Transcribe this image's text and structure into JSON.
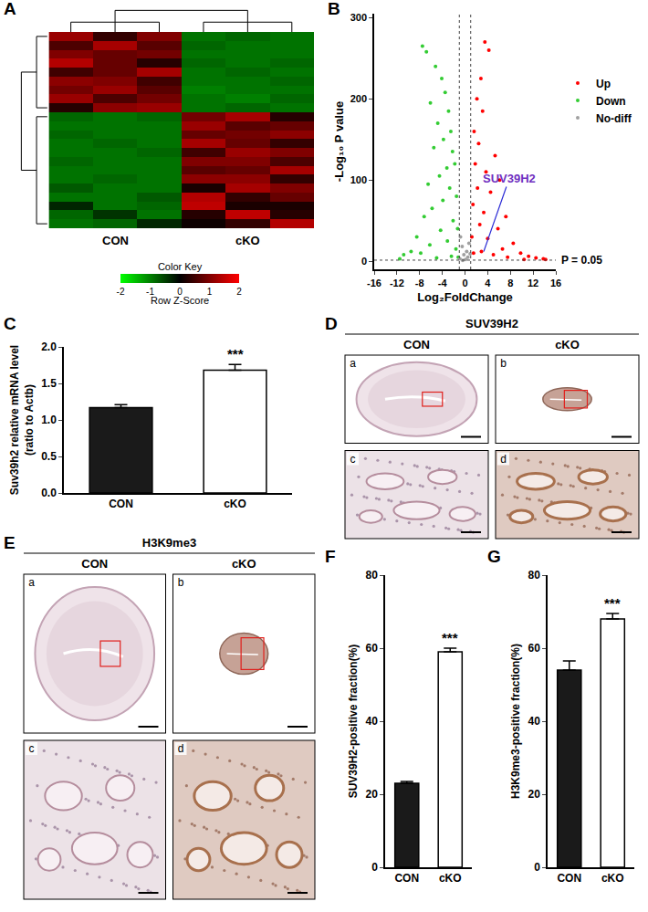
{
  "chart_data": [
    {
      "panel": "A",
      "type": "heatmap",
      "x": [
        "CON",
        "CON",
        "CON",
        "cKO",
        "cKO",
        "cKO"
      ],
      "z": [
        [
          1.2,
          0.4,
          1.0,
          -0.9,
          -0.8,
          -0.9
        ],
        [
          0.6,
          1.3,
          0.7,
          -0.8,
          -0.9,
          -0.9
        ],
        [
          1.0,
          0.8,
          0.9,
          -0.9,
          -0.9,
          -0.9
        ],
        [
          1.4,
          0.8,
          0.3,
          -0.8,
          -0.9,
          -0.8
        ],
        [
          0.5,
          0.8,
          1.3,
          -0.9,
          -0.8,
          -0.9
        ],
        [
          1.1,
          1.0,
          0.5,
          -0.9,
          -0.9,
          -0.8
        ],
        [
          0.9,
          1.2,
          0.7,
          -1.0,
          -0.9,
          -0.9
        ],
        [
          1.2,
          0.6,
          0.9,
          -0.9,
          -1.0,
          -0.8
        ],
        [
          0.3,
          1.1,
          1.2,
          -0.9,
          -0.8,
          -0.9
        ],
        [
          -0.8,
          -0.9,
          -0.8,
          0.9,
          1.3,
          0.3
        ],
        [
          -0.9,
          -0.9,
          -0.9,
          1.2,
          0.7,
          0.8
        ],
        [
          -0.8,
          -0.9,
          -0.9,
          0.8,
          0.9,
          1.1
        ],
        [
          -0.9,
          -0.8,
          -0.9,
          1.3,
          0.8,
          0.4
        ],
        [
          -0.9,
          -0.9,
          -0.8,
          0.5,
          1.2,
          1.0
        ],
        [
          -0.8,
          -0.9,
          -0.9,
          1.0,
          1.0,
          0.6
        ],
        [
          -0.9,
          -0.9,
          -0.9,
          0.7,
          0.8,
          1.3
        ],
        [
          -0.9,
          -0.8,
          -0.9,
          1.1,
          1.1,
          0.4
        ],
        [
          -0.7,
          -0.9,
          -0.9,
          0.2,
          1.3,
          1.0
        ],
        [
          -0.9,
          -0.9,
          -0.7,
          1.4,
          0.4,
          0.8
        ],
        [
          -0.3,
          -0.9,
          -0.8,
          1.5,
          0.2,
          0.2
        ],
        [
          -0.8,
          -0.4,
          -0.9,
          0.3,
          1.5,
          0.3
        ],
        [
          -0.9,
          -0.8,
          -0.3,
          0.1,
          0.4,
          1.4
        ]
      ],
      "colors": [
        "#00ff00",
        "#000000",
        "#ff0000"
      ],
      "colorbar": {
        "range": [
          -2,
          2
        ],
        "ticks": [
          -2,
          -1,
          0,
          1,
          2
        ],
        "title": "Color Key",
        "label": "Row Z-Score"
      },
      "tick_labels": false
    },
    {
      "panel": "B",
      "type": "scatter",
      "xlabel": "Log₂FoldChange",
      "ylabel": "-Log₁₀ P value",
      "xlim": [
        -16,
        16
      ],
      "xticks": [
        -16,
        -12,
        -8,
        -4,
        0,
        4,
        8,
        12,
        16
      ],
      "ylim": [
        -10,
        305
      ],
      "yticks": [
        0,
        100,
        200,
        300
      ],
      "legend": "right",
      "series": [
        {
          "name": "Up",
          "color": "#ff0000",
          "x": [
            3.5,
            4.2,
            2.8,
            2.1,
            3.1,
            1.6,
            2.4,
            5.3,
            1.8,
            3.7,
            6.1,
            2.2,
            4.5,
            1.4,
            3.3,
            7.2,
            2.6,
            5.8,
            1.2,
            4.0,
            8.5,
            6.6,
            2.9,
            9.8,
            11.2,
            12.5,
            13.8,
            7.5,
            10.4,
            5.0,
            14.2,
            1.5
          ],
          "y": [
            270,
            260,
            225,
            200,
            185,
            160,
            145,
            130,
            120,
            110,
            100,
            90,
            85,
            70,
            60,
            55,
            45,
            40,
            30,
            28,
            22,
            15,
            12,
            10,
            6,
            4,
            3,
            5,
            2,
            8,
            2,
            10
          ]
        },
        {
          "name": "Down",
          "color": "#33cc33",
          "x": [
            -7.5,
            -6.8,
            -5.2,
            -4.1,
            -3.5,
            -6.1,
            -2.9,
            -4.8,
            -2.5,
            -3.8,
            -5.5,
            -2.2,
            -1.8,
            -3.2,
            -4.5,
            -6.5,
            -2.7,
            -1.5,
            -3.9,
            -5.8,
            -7.2,
            -2.1,
            -1.3,
            -4.3,
            -8.5,
            -3.1,
            -6.2,
            -9.5,
            -1.6,
            -10.8,
            -2.4,
            -5.0,
            -11.5,
            -7.8,
            -1.2
          ],
          "y": [
            265,
            258,
            240,
            225,
            208,
            195,
            185,
            170,
            160,
            150,
            140,
            135,
            120,
            115,
            105,
            95,
            90,
            80,
            75,
            65,
            55,
            50,
            40,
            38,
            30,
            25,
            20,
            12,
            15,
            8,
            6,
            4,
            3,
            10,
            5
          ]
        },
        {
          "name": "No-diff",
          "color": "#a0a0a0",
          "x": [
            -0.8,
            -0.5,
            0.3,
            0.7,
            -0.2,
            0.5,
            -0.9,
            0.1,
            0.9,
            -0.4
          ],
          "y": [
            30,
            18,
            12,
            22,
            8,
            5,
            3,
            2,
            9,
            1
          ]
        }
      ],
      "highlight": {
        "label": "SUV39H2",
        "x": 3.3,
        "y": 12
      },
      "reference_lines": {
        "x": [
          -1,
          1
        ],
        "y": [
          1.3
        ],
        "label": "P = 0.05"
      }
    },
    {
      "panel": "C",
      "type": "bar",
      "ylabel": "Suv39h2 relative mRNA level (ratio to Actb)",
      "categories": [
        "CON",
        "cKO"
      ],
      "values": [
        1.17,
        1.68
      ],
      "errors": [
        0.04,
        0.08
      ],
      "colors": [
        "#1a1a1a",
        "#ffffff"
      ],
      "ylim": [
        0,
        2
      ],
      "yticks": [
        {
          "value": 0,
          "label": "0.0"
        },
        {
          "value": 0.5,
          "label": "0.5"
        },
        {
          "value": 1,
          "label": "1.0"
        },
        {
          "value": 1.5,
          "label": "1.5"
        },
        {
          "value": 2,
          "label": "2.0"
        }
      ],
      "annotations": [
        {
          "category": "cKO",
          "text": "***"
        }
      ]
    },
    {
      "panel": "F",
      "type": "bar",
      "ylabel": "SUV39H2-positive fraction(%)",
      "categories": [
        "CON",
        "cKO"
      ],
      "values": [
        23,
        59
      ],
      "errors": [
        0.5,
        1
      ],
      "colors": [
        "#1a1a1a",
        "#ffffff"
      ],
      "ylim": [
        0,
        80
      ],
      "yticks": [
        0,
        20,
        40,
        60,
        80
      ],
      "annotations": [
        {
          "category": "cKO",
          "text": "***"
        }
      ]
    },
    {
      "panel": "G",
      "type": "bar",
      "ylabel": "H3K9me3-positive fraction(%)",
      "categories": [
        "CON",
        "cKO"
      ],
      "values": [
        54,
        68
      ],
      "errors": [
        2.5,
        1.5
      ],
      "colors": [
        "#1a1a1a",
        "#ffffff"
      ],
      "ylim": [
        0,
        80
      ],
      "yticks": [
        0,
        20,
        40,
        60,
        80
      ],
      "annotations": [
        {
          "category": "cKO",
          "text": "***"
        }
      ]
    }
  ],
  "micrographs": [
    {
      "panel": "D",
      "title": "SUV39H2",
      "columns": [
        "CON",
        "cKO"
      ],
      "images": [
        "a",
        "b",
        "c",
        "d"
      ]
    },
    {
      "panel": "E",
      "title": "H3K9me3",
      "columns": [
        "CON",
        "cKO"
      ],
      "images": [
        "a",
        "b",
        "c",
        "d"
      ]
    }
  ]
}
